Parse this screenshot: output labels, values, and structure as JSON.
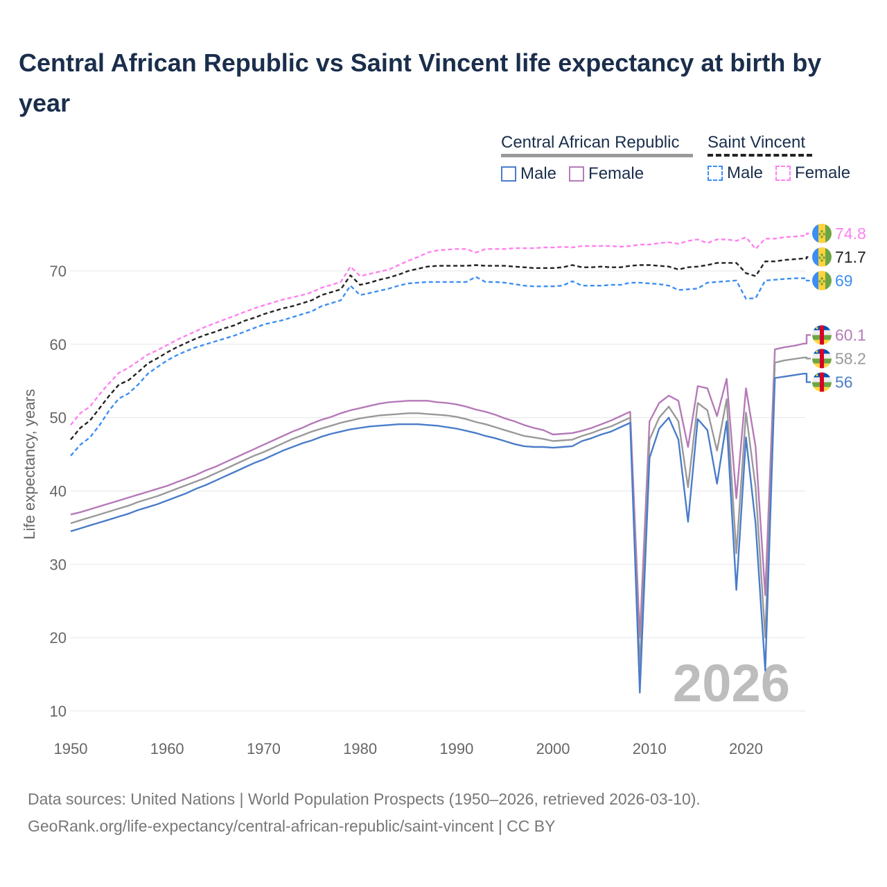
{
  "title": "Central African Republic vs Saint Vincent life expectancy at birth by year",
  "legend": {
    "groups": [
      {
        "name": "Central African Republic",
        "style": "solid",
        "underline_color": "#999999",
        "items": [
          {
            "label": "Male",
            "color": "#4a7cc9"
          },
          {
            "label": "Female",
            "color": "#b57ab8"
          }
        ]
      },
      {
        "name": "Saint Vincent",
        "style": "dashed",
        "underline_color": "#222222",
        "items": [
          {
            "label": "Male",
            "color": "#3d8ef0"
          },
          {
            "label": "Female",
            "color": "#ff80f0"
          }
        ]
      }
    ]
  },
  "year_watermark": "2026",
  "footer": {
    "line1": "Data sources: United Nations | World Population Prospects (1950–2026, retrieved 2026-03-10).",
    "line2": "GeoRank.org/life-expectancy/central-african-republic/saint-vincent | CC BY"
  },
  "chart_data": {
    "type": "line",
    "title": "Central African Republic vs Saint Vincent life expectancy at birth by year",
    "xlabel": "",
    "ylabel": "Life expectancy, years",
    "xlim": [
      1950,
      2026
    ],
    "ylim": [
      10,
      72
    ],
    "x_ticks": [
      "1950",
      "1960",
      "1970",
      "1980",
      "1990",
      "2000",
      "2010",
      "2020"
    ],
    "y_ticks": [
      "10",
      "20",
      "30",
      "40",
      "50",
      "60",
      "70"
    ],
    "grid": true,
    "x_start": 1950,
    "series": [
      {
        "name": "Saint Vincent Female",
        "country": "Saint Vincent",
        "color": "#ff80f0",
        "dash": true,
        "end_label": "74.8",
        "flag": "svg",
        "values": [
          49,
          50.6,
          51.5,
          53.2,
          54.7,
          56.1,
          56.8,
          57.7,
          58.6,
          59.2,
          59.9,
          60.6,
          61.2,
          61.8,
          62.4,
          62.9,
          63.4,
          63.9,
          64.4,
          64.9,
          65.3,
          65.7,
          66.1,
          66.4,
          66.7,
          67.1,
          67.7,
          68.1,
          68.5,
          70.6,
          69.3,
          69.6,
          69.9,
          70.2,
          70.8,
          71.4,
          71.9,
          72.5,
          72.8,
          72.9,
          73,
          73,
          72.5,
          73,
          73,
          73,
          73.1,
          73.1,
          73.1,
          73.2,
          73.2,
          73.3,
          73.2,
          73.4,
          73.4,
          73.4,
          73.4,
          73.3,
          73.4,
          73.6,
          73.6,
          73.8,
          73.9,
          73.7,
          74.1,
          74.3,
          73.8,
          74.3,
          74.3,
          74.1,
          74.6,
          73,
          74.4,
          74.4,
          74.6,
          74.7,
          74.8
        ]
      },
      {
        "name": "Saint Vincent Total",
        "country": "Saint Vincent",
        "color": "#222222",
        "dash": true,
        "end_label": "71.7",
        "flag": "svg",
        "values": [
          47,
          48.6,
          49.6,
          51.3,
          53,
          54.5,
          55.1,
          56.2,
          57.4,
          58.1,
          58.9,
          59.6,
          60.2,
          60.8,
          61.3,
          61.7,
          62.2,
          62.6,
          63.2,
          63.6,
          64.1,
          64.5,
          64.9,
          65.2,
          65.6,
          66,
          66.7,
          67.1,
          67.5,
          69.4,
          68.1,
          68.4,
          68.8,
          69.1,
          69.5,
          70,
          70.3,
          70.6,
          70.7,
          70.7,
          70.7,
          70.7,
          70.8,
          70.7,
          70.7,
          70.7,
          70.6,
          70.5,
          70.4,
          70.4,
          70.4,
          70.5,
          70.8,
          70.5,
          70.5,
          70.6,
          70.5,
          70.5,
          70.7,
          70.8,
          70.8,
          70.7,
          70.6,
          70.2,
          70.5,
          70.6,
          70.8,
          71.1,
          71.1,
          71.1,
          69.7,
          69.3,
          71.3,
          71.3,
          71.5,
          71.6,
          71.7
        ]
      },
      {
        "name": "Saint Vincent Male",
        "country": "Saint Vincent",
        "color": "#3d8ef0",
        "dash": true,
        "end_label": "69",
        "flag": "svg",
        "values": [
          44.8,
          46.3,
          47.3,
          49,
          51,
          52.6,
          53.3,
          54.5,
          56,
          56.9,
          57.8,
          58.5,
          59.1,
          59.6,
          60,
          60.4,
          60.8,
          61.2,
          61.7,
          62.2,
          62.7,
          63,
          63.3,
          63.7,
          64.1,
          64.5,
          65.2,
          65.6,
          66,
          68,
          66.7,
          67,
          67.3,
          67.6,
          68,
          68.3,
          68.4,
          68.5,
          68.5,
          68.5,
          68.5,
          68.5,
          69.2,
          68.5,
          68.5,
          68.4,
          68.2,
          68,
          67.9,
          67.9,
          67.9,
          68,
          68.6,
          68,
          68,
          68,
          68.1,
          68.1,
          68.4,
          68.4,
          68.3,
          68.2,
          68,
          67.4,
          67.5,
          67.6,
          68.4,
          68.5,
          68.6,
          68.7,
          66.2,
          66.3,
          68.7,
          68.8,
          68.9,
          69,
          69
        ]
      },
      {
        "name": "Central African Republic Female",
        "country": "Central African Republic",
        "color": "#b57ab8",
        "dash": false,
        "end_label": "60.1",
        "flag": "car",
        "values": [
          36.8,
          37.1,
          37.5,
          37.9,
          38.3,
          38.7,
          39.1,
          39.5,
          39.9,
          40.3,
          40.7,
          41.2,
          41.7,
          42.2,
          42.8,
          43.3,
          43.9,
          44.5,
          45.1,
          45.7,
          46.3,
          46.9,
          47.5,
          48.1,
          48.6,
          49.2,
          49.7,
          50.1,
          50.6,
          51,
          51.3,
          51.6,
          51.9,
          52.1,
          52.2,
          52.3,
          52.3,
          52.3,
          52.1,
          52,
          51.8,
          51.5,
          51.1,
          50.8,
          50.4,
          49.9,
          49.5,
          49,
          48.6,
          48.3,
          47.7,
          47.8,
          47.9,
          48.2,
          48.6,
          49.1,
          49.6,
          50.2,
          50.8,
          20,
          49.5,
          52,
          53,
          52.3,
          46,
          54.3,
          54,
          50.2,
          55.3,
          39,
          54,
          46,
          25.8,
          59.3,
          59.6,
          59.8,
          60.1
        ]
      },
      {
        "name": "Central African Republic Total",
        "country": "Central African Republic",
        "color": "#999999",
        "dash": false,
        "end_label": "58.2",
        "flag": "car",
        "values": [
          35.6,
          36,
          36.4,
          36.8,
          37.2,
          37.6,
          38,
          38.5,
          38.9,
          39.3,
          39.8,
          40.3,
          40.8,
          41.3,
          41.8,
          42.4,
          43,
          43.6,
          44.2,
          44.8,
          45.3,
          45.9,
          46.5,
          47.1,
          47.6,
          48.1,
          48.5,
          48.9,
          49.3,
          49.6,
          49.9,
          50.1,
          50.3,
          50.4,
          50.5,
          50.6,
          50.6,
          50.5,
          50.4,
          50.3,
          50.1,
          49.8,
          49.4,
          49.1,
          48.7,
          48.3,
          47.9,
          47.5,
          47.3,
          47.1,
          46.8,
          46.9,
          47,
          47.5,
          47.9,
          48.4,
          48.8,
          49.4,
          50,
          16,
          47,
          50,
          51.5,
          49.5,
          40.5,
          52,
          51,
          45.5,
          52.5,
          31.5,
          50.7,
          40.5,
          20,
          57.5,
          57.8,
          58,
          58.2
        ]
      },
      {
        "name": "Central African Republic Male",
        "country": "Central African Republic",
        "color": "#4a7cc9",
        "dash": false,
        "end_label": "56",
        "flag": "car",
        "values": [
          34.5,
          34.9,
          35.3,
          35.7,
          36.1,
          36.5,
          36.9,
          37.4,
          37.8,
          38.2,
          38.7,
          39.2,
          39.7,
          40.3,
          40.8,
          41.4,
          42,
          42.6,
          43.2,
          43.8,
          44.3,
          44.9,
          45.5,
          46,
          46.5,
          46.9,
          47.4,
          47.8,
          48.1,
          48.4,
          48.6,
          48.8,
          48.9,
          49,
          49.1,
          49.1,
          49.1,
          49,
          48.9,
          48.7,
          48.5,
          48.2,
          47.9,
          47.5,
          47.2,
          46.8,
          46.4,
          46.1,
          46,
          46,
          45.9,
          46,
          46.1,
          46.8,
          47.2,
          47.7,
          48.1,
          48.7,
          49.3,
          12.5,
          44.5,
          48.5,
          50,
          47,
          35.8,
          49.8,
          48.3,
          41,
          49.5,
          26.5,
          47.3,
          35.5,
          15.5,
          55.4,
          55.6,
          55.8,
          56
        ]
      }
    ]
  }
}
